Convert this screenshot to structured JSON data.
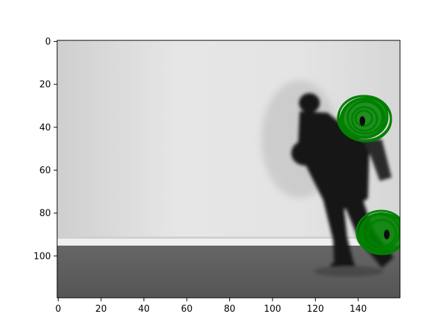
{
  "figure": {
    "x_axis": {
      "ticks": [
        0,
        20,
        40,
        60,
        80,
        100,
        120,
        140
      ],
      "labels": [
        "0",
        "20",
        "40",
        "60",
        "80",
        "100",
        "120",
        "140"
      ],
      "range": [
        -0.5,
        159.5
      ]
    },
    "y_axis": {
      "ticks": [
        0,
        20,
        40,
        60,
        80,
        100
      ],
      "labels": [
        "0",
        "20",
        "40",
        "60",
        "80",
        "100"
      ],
      "range": [
        119.5,
        -0.5
      ],
      "inverted": true
    },
    "image": {
      "description_type": "grayscale frame",
      "wall_color": "#e2e2e2",
      "floor_color": "#5a5a5a",
      "baseboard_color": "#efefef",
      "figure_color": "#111111"
    },
    "markers": [
      {
        "name": "marker-upper",
        "x": 142,
        "y": 37,
        "color": "#008000"
      },
      {
        "name": "marker-lower",
        "x": 152,
        "y": 90,
        "color": "#008000"
      }
    ]
  }
}
